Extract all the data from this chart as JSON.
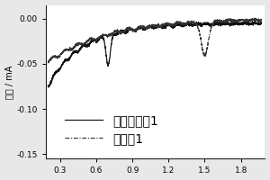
{
  "title": "",
  "ylabel": "电流 / mA",
  "xlabel": "",
  "xlim": [
    0.18,
    2.0
  ],
  "ylim": [
    -0.155,
    0.015
  ],
  "xticks": [
    0.3,
    0.6,
    0.9,
    1.2,
    1.5,
    1.8
  ],
  "yticks": [
    0.0,
    -0.05,
    -0.1,
    -0.15
  ],
  "ytick_labels": [
    "0.00",
    "-0.05",
    "-0.10",
    "-0.15"
  ],
  "legend_labels": [
    "对比实施例1",
    "实施例1"
  ],
  "line1_color": "#111111",
  "line2_color": "#333333",
  "background": "#ffffff",
  "fig_bg": "#e8e8e8"
}
